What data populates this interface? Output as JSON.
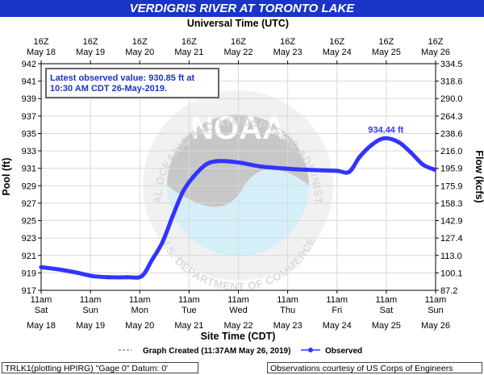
{
  "chart_data": {
    "type": "line",
    "title": "VERDIGRIS RIVER AT TORONTO LAKE",
    "top_axis_label": "Universal Time (UTC)",
    "top_ticks": [
      {
        "day": "16Z",
        "date": "May 18"
      },
      {
        "day": "16Z",
        "date": "May 19"
      },
      {
        "day": "16Z",
        "date": "May 20"
      },
      {
        "day": "16Z",
        "date": "May 21"
      },
      {
        "day": "16Z",
        "date": "May 22"
      },
      {
        "day": "16Z",
        "date": "May 23"
      },
      {
        "day": "16Z",
        "date": "May 24"
      },
      {
        "day": "16Z",
        "date": "May 25"
      },
      {
        "day": "16Z",
        "date": "May 26"
      }
    ],
    "bottom_ticks": [
      {
        "time": "11am",
        "weekday": "Sat",
        "date": "May 18"
      },
      {
        "time": "11am",
        "weekday": "Sun",
        "date": "May 19"
      },
      {
        "time": "11am",
        "weekday": "Mon",
        "date": "May 20"
      },
      {
        "time": "11am",
        "weekday": "Tue",
        "date": "May 21"
      },
      {
        "time": "11am",
        "weekday": "Wed",
        "date": "May 22"
      },
      {
        "time": "11am",
        "weekday": "Thu",
        "date": "May 23"
      },
      {
        "time": "11am",
        "weekday": "Fri",
        "date": "May 24"
      },
      {
        "time": "11am",
        "weekday": "Sat",
        "date": "May 25"
      },
      {
        "time": "11am",
        "weekday": "Sun",
        "date": "May 26"
      }
    ],
    "xlabel": "Site Time (CDT)",
    "ylabel": "Pool (ft)",
    "y2label": "Flow (kcfs)",
    "ylim": [
      917,
      942
    ],
    "yticks": [
      "942",
      "941",
      "939",
      "937",
      "935",
      "933",
      "931",
      "929",
      "927",
      "925",
      "923",
      "921",
      "919",
      "917"
    ],
    "y2ticks": [
      "334.5",
      "318.6",
      "290.0",
      "264.3",
      "238.6",
      "216.0",
      "195.9",
      "175.9",
      "158.3",
      "142.9",
      "127.4",
      "113.0",
      "100.1",
      "87.2"
    ],
    "grid": true,
    "annotation_latest": "Latest observed value: 930.85 ft at 10:30 AM CDT 26-May-2019.",
    "peak_label": "934.44 ft",
    "series": [
      {
        "name": "Observed",
        "color": "#3333ff",
        "points": [
          {
            "x": "2019-05-18 11:00",
            "y": 919.66
          },
          {
            "x": "2019-05-18 21:00",
            "y": 919.35
          },
          {
            "x": "2019-05-19 05:00",
            "y": 919.0
          },
          {
            "x": "2019-05-19 12:00",
            "y": 918.64
          },
          {
            "x": "2019-05-19 20:00",
            "y": 918.5
          },
          {
            "x": "2019-05-20 05:00",
            "y": 918.5
          },
          {
            "x": "2019-05-20 12:00",
            "y": 918.64
          },
          {
            "x": "2019-05-20 17:00",
            "y": 920.5
          },
          {
            "x": "2019-05-20 22:00",
            "y": 922.5
          },
          {
            "x": "2019-05-21 03:00",
            "y": 925.5
          },
          {
            "x": "2019-05-21 08:00",
            "y": 928.3
          },
          {
            "x": "2019-05-21 13:00",
            "y": 930.0
          },
          {
            "x": "2019-05-21 19:00",
            "y": 931.4
          },
          {
            "x": "2019-05-22 00:00",
            "y": 931.8
          },
          {
            "x": "2019-05-22 06:00",
            "y": 931.8
          },
          {
            "x": "2019-05-22 13:00",
            "y": 931.6
          },
          {
            "x": "2019-05-22 22:00",
            "y": 931.2
          },
          {
            "x": "2019-05-23 11:00",
            "y": 930.95
          },
          {
            "x": "2019-05-24 00:00",
            "y": 930.8
          },
          {
            "x": "2019-05-24 11:00",
            "y": 930.7
          },
          {
            "x": "2019-05-24 17:00",
            "y": 930.6
          },
          {
            "x": "2019-05-24 22:00",
            "y": 932.3
          },
          {
            "x": "2019-05-25 04:00",
            "y": 933.7
          },
          {
            "x": "2019-05-25 10:00",
            "y": 934.44
          },
          {
            "x": "2019-05-25 17:00",
            "y": 934.0
          },
          {
            "x": "2019-05-25 23:00",
            "y": 932.8
          },
          {
            "x": "2019-05-26 05:00",
            "y": 931.4
          },
          {
            "x": "2019-05-26 10:30",
            "y": 930.85
          }
        ]
      }
    ],
    "legend": {
      "created_label": "Graph Created (11:37AM May 26, 2019)",
      "observed_label": "Observed"
    }
  },
  "watermark": {
    "logo_text": "NOAA",
    "ring_text": "NATIONAL OCEANIC AND ATMOSPHERIC ADMINISTRATION",
    "ring_text_bottom": "U.S. DEPARTMENT OF COMMERCE"
  },
  "footer": {
    "left": "TRLK1(plotting HPIRG) \"Gage 0\" Datum: 0'",
    "right": "Observations courtesy of US Corps of Engineers"
  }
}
